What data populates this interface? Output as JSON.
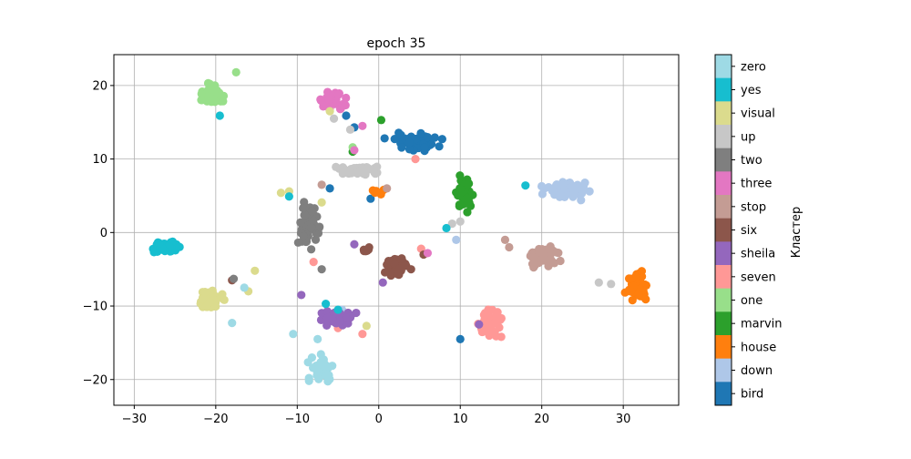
{
  "chart_data": {
    "type": "scatter",
    "title": "epoch 35",
    "xlabel": "",
    "ylabel": "",
    "xlim": [
      -32.5,
      36.8
    ],
    "ylim": [
      -23.5,
      24.2
    ],
    "xticks": [
      -30,
      -20,
      -10,
      0,
      10,
      20,
      30
    ],
    "yticks": [
      -20,
      -10,
      0,
      10,
      20
    ],
    "xtick_labels": [
      "−30",
      "−20",
      "−10",
      "0",
      "10",
      "20",
      "30"
    ],
    "ytick_labels": [
      "−20",
      "−10",
      "0",
      "10",
      "20"
    ],
    "grid": true,
    "colorbar": {
      "label": "Кластер",
      "position": "right",
      "categories_top_to_bottom": [
        "zero",
        "yes",
        "visual",
        "up",
        "two",
        "three",
        "stop",
        "six",
        "sheila",
        "seven",
        "one",
        "marvin",
        "house",
        "down",
        "bird"
      ],
      "colors_top_to_bottom": [
        "#9edae5",
        "#17becf",
        "#dbdb8d",
        "#c7c7c7",
        "#7f7f7f",
        "#e377c2",
        "#c49c94",
        "#8c564b",
        "#9467bd",
        "#ff9896",
        "#98df8a",
        "#2ca02c",
        "#ff7f0e",
        "#aec7e8",
        "#1f77b4"
      ]
    },
    "series": [
      {
        "name": "bird",
        "color": "#1f77b4",
        "clusters": [
          {
            "center": [
              4.5,
              12.3
            ],
            "spread": [
              2.6,
              1.0
            ],
            "count": 60
          }
        ],
        "outliers": [
          [
            10.0,
            -14.5
          ],
          [
            -4.0,
            15.9
          ],
          [
            -3.0,
            14.3
          ],
          [
            -1.0,
            4.6
          ],
          [
            -6.0,
            6.0
          ]
        ]
      },
      {
        "name": "down",
        "color": "#aec7e8",
        "clusters": [
          {
            "center": [
              23.0,
              5.8
            ],
            "spread": [
              2.5,
              1.0
            ],
            "count": 45
          }
        ],
        "outliers": [
          [
            9.5,
            -1.0
          ],
          [
            -4.5,
            -10.5
          ]
        ]
      },
      {
        "name": "house",
        "color": "#ff7f0e",
        "clusters": [
          {
            "center": [
              31.8,
              -7.3
            ],
            "spread": [
              1.1,
              1.5
            ],
            "count": 55
          },
          {
            "center": [
              0.0,
              5.4
            ],
            "spread": [
              1.0,
              0.3
            ],
            "count": 6
          }
        ],
        "outliers": []
      },
      {
        "name": "marvin",
        "color": "#2ca02c",
        "clusters": [
          {
            "center": [
              10.6,
              5.2
            ],
            "spread": [
              0.8,
              1.8
            ],
            "count": 45
          }
        ],
        "outliers": [
          [
            0.3,
            15.3
          ],
          [
            -3.2,
            11.0
          ]
        ]
      },
      {
        "name": "one",
        "color": "#98df8a",
        "clusters": [
          {
            "center": [
              -20.5,
              18.8
            ],
            "spread": [
              1.5,
              1.2
            ],
            "count": 40
          }
        ],
        "outliers": [
          [
            -17.5,
            21.8
          ],
          [
            -3.2,
            11.6
          ]
        ]
      },
      {
        "name": "seven",
        "color": "#ff9896",
        "clusters": [
          {
            "center": [
              13.5,
              -12.4
            ],
            "spread": [
              1.3,
              1.6
            ],
            "count": 45
          }
        ],
        "outliers": [
          [
            4.5,
            10.0
          ],
          [
            -2.0,
            -13.8
          ],
          [
            -5.0,
            -13.0
          ],
          [
            5.2,
            -2.2
          ],
          [
            -8.0,
            -4.0
          ]
        ]
      },
      {
        "name": "sheila",
        "color": "#9467bd",
        "clusters": [
          {
            "center": [
              -5.5,
              -11.8
            ],
            "spread": [
              2.0,
              1.0
            ],
            "count": 55
          }
        ],
        "outliers": [
          [
            -3.0,
            -1.6
          ],
          [
            0.5,
            -6.8
          ],
          [
            12.3,
            -12.5
          ],
          [
            -9.5,
            -8.5
          ]
        ]
      },
      {
        "name": "six",
        "color": "#8c564b",
        "clusters": [
          {
            "center": [
              2.3,
              -4.7
            ],
            "spread": [
              1.2,
              1.1
            ],
            "count": 45
          },
          {
            "center": [
              -1.5,
              -2.2
            ],
            "spread": [
              0.8,
              0.4
            ],
            "count": 6
          }
        ],
        "outliers": [
          [
            -18.0,
            -6.5
          ],
          [
            5.5,
            -3.0
          ]
        ]
      },
      {
        "name": "stop",
        "color": "#c49c94",
        "clusters": [
          {
            "center": [
              20.0,
              -3.2
            ],
            "spread": [
              1.8,
              1.2
            ],
            "count": 50
          }
        ],
        "outliers": [
          [
            1.0,
            6.0
          ],
          [
            -7.0,
            6.5
          ],
          [
            16.0,
            -2.0
          ],
          [
            15.5,
            -1.0
          ]
        ]
      },
      {
        "name": "three",
        "color": "#e377c2",
        "clusters": [
          {
            "center": [
              -5.5,
              18.0
            ],
            "spread": [
              1.2,
              1.3
            ],
            "count": 40
          }
        ],
        "outliers": [
          [
            -2.0,
            14.5
          ],
          [
            -3.0,
            11.2
          ],
          [
            6.0,
            -2.8
          ],
          [
            -21.0,
            -9.5
          ]
        ]
      },
      {
        "name": "two",
        "color": "#7f7f7f",
        "clusters": [
          {
            "center": [
              -8.5,
              1.0
            ],
            "spread": [
              1.0,
              3.2
            ],
            "count": 55
          }
        ],
        "outliers": [
          [
            -17.8,
            -6.3
          ],
          [
            -7.0,
            -5.0
          ]
        ]
      },
      {
        "name": "up",
        "color": "#c7c7c7",
        "clusters": [
          {
            "center": [
              -2.5,
              8.4
            ],
            "spread": [
              2.5,
              0.6
            ],
            "count": 50
          }
        ],
        "outliers": [
          [
            9.0,
            1.2
          ],
          [
            10.0,
            1.5
          ],
          [
            27.0,
            -6.8
          ],
          [
            28.5,
            -7.0
          ],
          [
            -3.5,
            14.0
          ],
          [
            -5.5,
            15.5
          ]
        ]
      },
      {
        "name": "visual",
        "color": "#dbdb8d",
        "clusters": [
          {
            "center": [
              -20.5,
              -9.2
            ],
            "spread": [
              1.5,
              1.2
            ],
            "count": 45
          }
        ],
        "outliers": [
          [
            -15.2,
            -5.2
          ],
          [
            -16.0,
            -8.0
          ],
          [
            -12.0,
            5.4
          ],
          [
            -11.0,
            5.6
          ],
          [
            -7.0,
            4.1
          ],
          [
            -1.5,
            -12.7
          ],
          [
            -6.0,
            16.5
          ]
        ]
      },
      {
        "name": "yes",
        "color": "#17becf",
        "clusters": [
          {
            "center": [
              -26.3,
              -1.9
            ],
            "spread": [
              1.3,
              0.7
            ],
            "count": 55
          }
        ],
        "outliers": [
          [
            -19.5,
            15.9
          ],
          [
            -11.0,
            4.9
          ],
          [
            18.0,
            6.4
          ],
          [
            8.3,
            0.6
          ],
          [
            -6.5,
            -9.7
          ],
          [
            -5.0,
            -10.5
          ]
        ]
      },
      {
        "name": "zero",
        "color": "#9edae5",
        "clusters": [
          {
            "center": [
              -7.2,
              -18.5
            ],
            "spread": [
              1.4,
              1.2
            ],
            "count": 50
          }
        ],
        "outliers": [
          [
            -18.0,
            -12.3
          ],
          [
            -16.5,
            -7.5
          ],
          [
            -10.5,
            -13.8
          ],
          [
            -7.5,
            -14.5
          ]
        ]
      }
    ]
  }
}
